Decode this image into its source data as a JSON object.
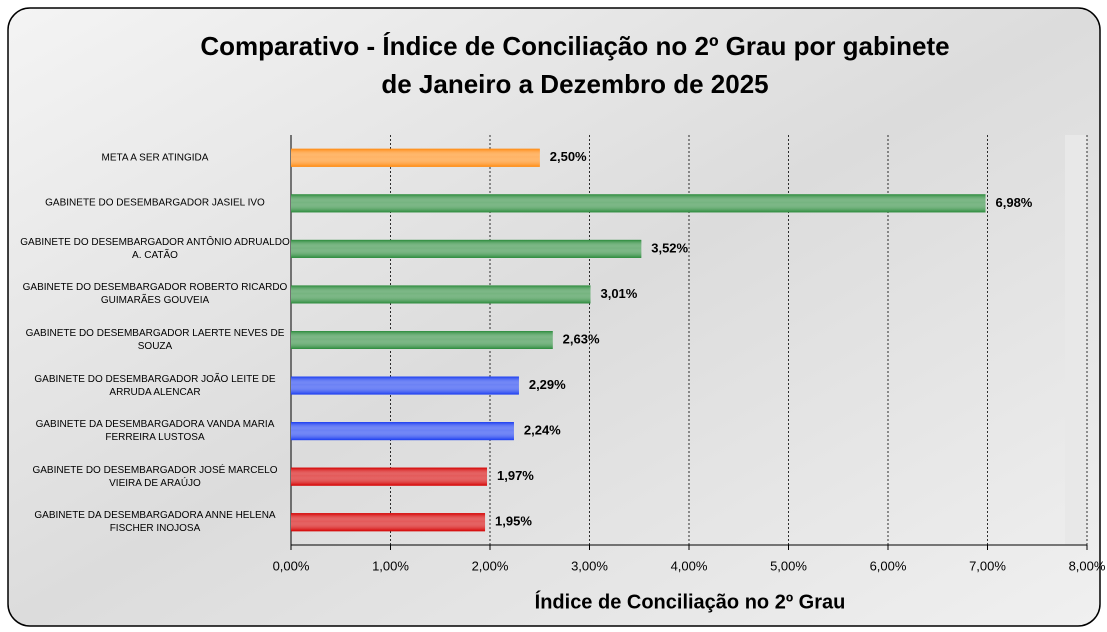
{
  "chart_data": {
    "type": "hbar",
    "title": [
      "Comparativo - Índice de Conciliação no 2º Grau por gabinete",
      "de Janeiro a Dezembro de 2025"
    ],
    "x_label": "Índice de Conciliação no 2º Grau",
    "categories": [
      "META A SER ATINGIDA",
      "GABINETE DO DESEMBARGADOR JASIEL IVO",
      "GABINETE DO DESEMBARGADOR ANTÔNIO ADRUALDO A. CATÃO",
      "GABINETE DO DESEMBARGADOR ROBERTO RICARDO GUIMARÃES GOUVEIA",
      "GABINETE DO DESEMBARGADOR LAERTE NEVES DE SOUZA",
      "GABINETE DO DESEMBARGADOR JOÃO LEITE DE ARRUDA ALENCAR",
      "GABINETE DA DESEMBARGADORA VANDA MARIA FERREIRA LUSTOSA",
      "GABINETE DO DESEMBARGADOR JOSÉ MARCELO VIEIRA DE ARAÚJO",
      "GABINETE DA DESEMBARGADORA ANNE HELENA FISCHER INOJOSA"
    ],
    "values": [
      2.5,
      6.98,
      3.52,
      3.01,
      2.63,
      2.29,
      2.24,
      1.97,
      1.95
    ],
    "value_labels": [
      "2,50%",
      "6,98%",
      "3,52%",
      "3,01%",
      "2,63%",
      "2,29%",
      "2,24%",
      "1,97%",
      "1,95%"
    ],
    "colors": [
      "#ff8a10",
      "#2a8a3a",
      "#2a8a3a",
      "#2a8a3a",
      "#2a8a3a",
      "#1a3cf0",
      "#1a3cf0",
      "#d40000",
      "#d40000"
    ],
    "xlim": [
      0,
      8
    ],
    "xticks": [
      {
        "value": 0,
        "label": "0,00%"
      },
      {
        "value": 1,
        "label": "1,00%"
      },
      {
        "value": 2,
        "label": "2,00%"
      },
      {
        "value": 3,
        "label": "3,00%"
      },
      {
        "value": 4,
        "label": "4,00%"
      },
      {
        "value": 5,
        "label": "5,00%"
      },
      {
        "value": 6,
        "label": "6,00%"
      },
      {
        "value": 7,
        "label": "7,00%"
      },
      {
        "value": 8,
        "label": "8,00%"
      }
    ],
    "grid": true
  }
}
